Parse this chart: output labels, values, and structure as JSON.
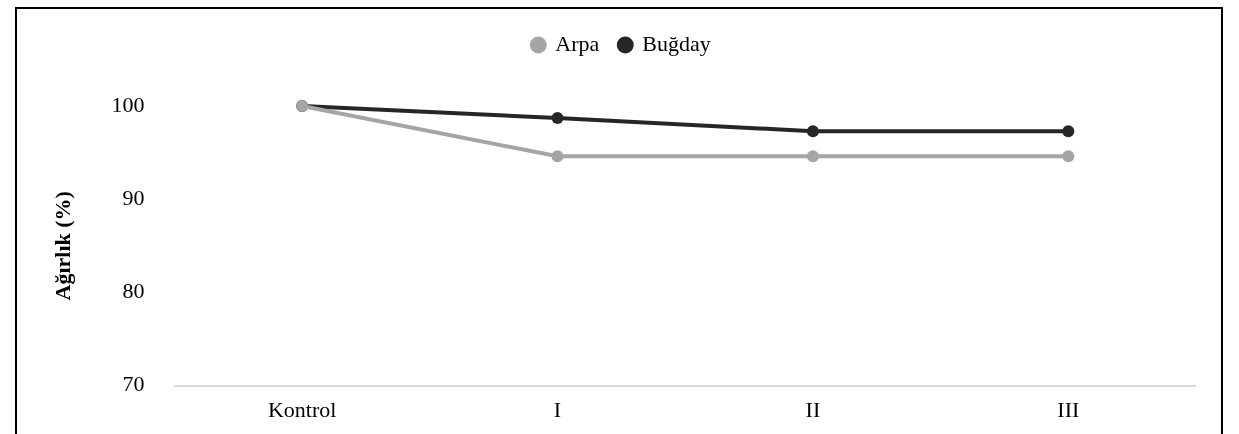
{
  "chart_data": {
    "type": "line",
    "ylabel": "Ağırlık (%)",
    "categories": [
      "Kontrol",
      "I",
      "II",
      "III"
    ],
    "series": [
      {
        "name": "Arpa",
        "color": "#a5a5a5",
        "values": [
          100,
          94.6,
          94.6,
          94.6
        ]
      },
      {
        "name": "Buğday",
        "color": "#262626",
        "values": [
          100,
          98.7,
          97.3,
          97.3
        ]
      }
    ],
    "ylim": [
      70,
      100
    ],
    "yticks": [
      70,
      80,
      90,
      100
    ],
    "grid": false,
    "legend": "top",
    "marker": "circle",
    "line_style": "solid"
  }
}
